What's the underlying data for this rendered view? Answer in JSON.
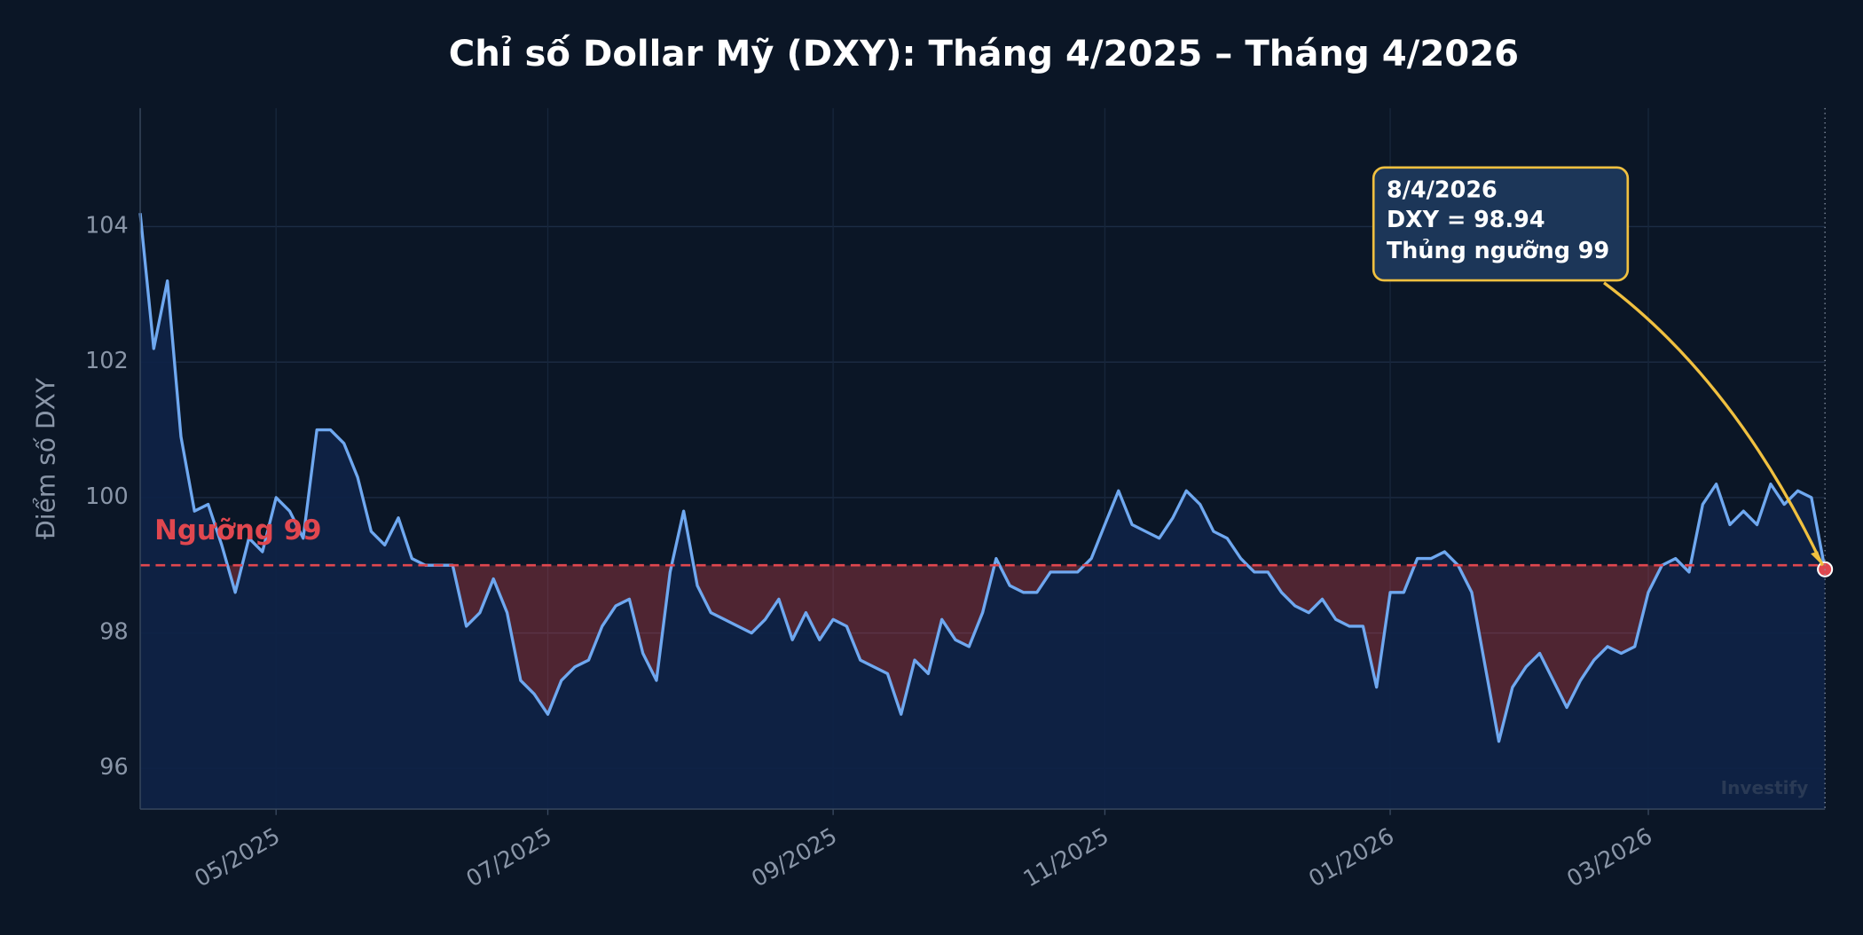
{
  "chart_data": {
    "type": "line",
    "title": "Chỉ số Dollar Mỹ (DXY): Tháng 4/2025 – Tháng 4/2026",
    "y_label": "Điểm số DXY",
    "watermark": "Investify",
    "categories": [
      null,
      null,
      null,
      null,
      null,
      null,
      null,
      null,
      null,
      null,
      "05/2025",
      null,
      null,
      null,
      null,
      null,
      null,
      null,
      null,
      null,
      null,
      null,
      null,
      null,
      null,
      null,
      null,
      null,
      null,
      null,
      "07/2025",
      null,
      null,
      null,
      null,
      null,
      null,
      null,
      null,
      null,
      null,
      null,
      null,
      null,
      null,
      null,
      null,
      null,
      null,
      null,
      null,
      "09/2025",
      null,
      null,
      null,
      null,
      null,
      null,
      null,
      null,
      null,
      null,
      null,
      null,
      null,
      null,
      null,
      null,
      null,
      null,
      null,
      "11/2025",
      null,
      null,
      null,
      null,
      null,
      null,
      null,
      null,
      null,
      null,
      null,
      null,
      null,
      null,
      null,
      null,
      null,
      null,
      null,
      null,
      "01/2026",
      null,
      null,
      null,
      null,
      null,
      null,
      null,
      null,
      null,
      null,
      null,
      null,
      null,
      null,
      null,
      null,
      null,
      null,
      "03/2026",
      null,
      null,
      null,
      null,
      null,
      null,
      null,
      null,
      null,
      null,
      null,
      null,
      null
    ],
    "series": [
      {
        "name": "DXY",
        "color": "#6fa8f0",
        "values": [
          104.2,
          102.2,
          103.2,
          100.9,
          99.8,
          99.9,
          99.3,
          98.6,
          99.4,
          99.2,
          100.0,
          99.8,
          99.4,
          101.0,
          101.0,
          100.8,
          100.3,
          99.5,
          99.3,
          99.7,
          99.1,
          99.0,
          99.0,
          99.0,
          98.1,
          98.3,
          98.8,
          98.3,
          97.3,
          97.1,
          96.8,
          97.3,
          97.5,
          97.6,
          98.1,
          98.4,
          98.5,
          97.7,
          97.3,
          98.9,
          99.8,
          98.7,
          98.3,
          98.2,
          98.1,
          98.0,
          98.2,
          98.5,
          97.9,
          98.3,
          97.9,
          98.2,
          98.1,
          97.6,
          97.5,
          97.4,
          96.8,
          97.6,
          97.4,
          98.2,
          97.9,
          97.8,
          98.3,
          99.1,
          98.7,
          98.6,
          98.6,
          98.9,
          98.9,
          98.9,
          99.1,
          99.6,
          100.1,
          99.6,
          99.5,
          99.4,
          99.7,
          100.1,
          99.9,
          99.5,
          99.4,
          99.1,
          98.9,
          98.9,
          98.6,
          98.4,
          98.3,
          98.5,
          98.2,
          98.1,
          98.1,
          97.2,
          98.6,
          98.6,
          99.1,
          99.1,
          99.2,
          99.0,
          98.6,
          97.5,
          96.4,
          97.2,
          97.5,
          97.7,
          97.3,
          96.9,
          97.3,
          97.6,
          97.8,
          97.7,
          97.8,
          98.6,
          99.0,
          99.1,
          98.9,
          99.9,
          100.2,
          99.6,
          99.8,
          99.6,
          100.2,
          99.9,
          100.1,
          100.0,
          98.94
        ]
      }
    ],
    "threshold": {
      "value": 99,
      "label": "Ngưỡng 99",
      "color": "#e0474f"
    },
    "annotation": {
      "lines": [
        "8/4/2026",
        "DXY = 98.94",
        "Thủng ngưỡng 99"
      ],
      "color": "#f0c040"
    },
    "ylim": [
      95.4,
      105.75
    ],
    "yticks": [
      96,
      98,
      100,
      102,
      104
    ],
    "grid": true
  }
}
